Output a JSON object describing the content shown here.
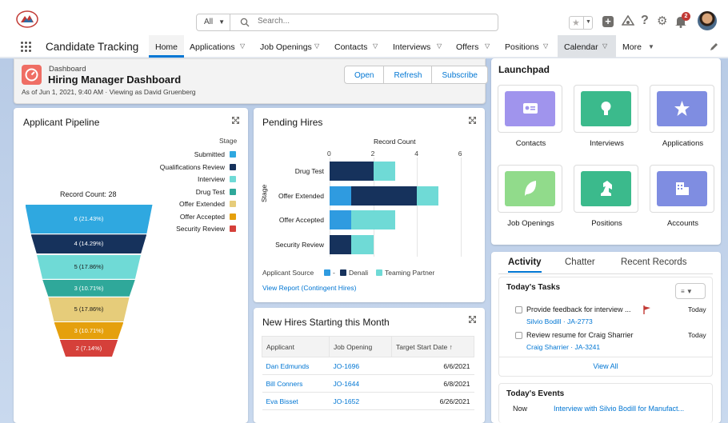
{
  "search": {
    "scope": "All",
    "placeholder": "Search..."
  },
  "notifications": {
    "count": "2"
  },
  "nav": {
    "app_name": "Candidate Tracking",
    "tabs": [
      "Home",
      "Applications",
      "Job Openings",
      "Contacts",
      "Interviews",
      "Offers",
      "Positions",
      "Calendar",
      "More"
    ]
  },
  "dashboard": {
    "type_label": "Dashboard",
    "title": "Hiring Manager Dashboard",
    "subtitle": "As of Jun 1, 2021, 9:40 AM · Viewing as David Gruenberg",
    "buttons": {
      "open": "Open",
      "refresh": "Refresh",
      "subscribe": "Subscribe"
    }
  },
  "pipeline": {
    "title": "Applicant Pipeline",
    "legend_title": "Stage",
    "record_count": "Record Count: 28",
    "stages": [
      {
        "name": "Submitted",
        "color": "#2fa8e0",
        "label": "6 (21.43%)",
        "value": 6
      },
      {
        "name": "Qualifications Review",
        "color": "#16325c",
        "label": "4 (14.29%)",
        "value": 4
      },
      {
        "name": "Interview",
        "color": "#6fdad6",
        "label": "5 (17.86%)",
        "value": 5
      },
      {
        "name": "Drug Test",
        "color": "#2fa89a",
        "label": "3 (10.71%)",
        "value": 3
      },
      {
        "name": "Offer Extended",
        "color": "#e6cc7a",
        "label": "5 (17.86%)",
        "value": 5
      },
      {
        "name": "Offer Accepted",
        "color": "#e5a00d",
        "label": "3 (10.71%)",
        "value": 3
      },
      {
        "name": "Security Review",
        "color": "#d5403a",
        "label": "2 (7.14%)",
        "value": 2
      }
    ]
  },
  "pending": {
    "title": "Pending Hires",
    "xlabel": "Record Count",
    "ylabel": "Stage",
    "ticks": [
      "0",
      "2",
      "4",
      "6"
    ],
    "source_label": "Applicant Source",
    "sources": [
      {
        "name": "-",
        "color": "#2f9be0"
      },
      {
        "name": "Denali",
        "color": "#16325c"
      },
      {
        "name": "Teaming Partner",
        "color": "#6fdad6"
      }
    ],
    "link": "View Report (Contingent Hires)"
  },
  "chart_data": {
    "type": "bar",
    "orientation": "horizontal",
    "stacked": true,
    "xlabel": "Record Count",
    "ylabel": "Stage",
    "xlim": [
      0,
      6
    ],
    "categories": [
      "Drug Test",
      "Offer Extended",
      "Offer Accepted",
      "Security Review"
    ],
    "series": [
      {
        "name": "-",
        "color": "#2f9be0",
        "values": [
          0,
          1,
          1,
          0
        ]
      },
      {
        "name": "Denali",
        "color": "#16325c",
        "values": [
          2,
          3,
          0,
          1
        ]
      },
      {
        "name": "Teaming Partner",
        "color": "#6fdad6",
        "values": [
          1,
          1,
          2,
          1
        ]
      }
    ]
  },
  "new_hires": {
    "title": "New Hires Starting this Month",
    "columns": [
      "Applicant",
      "Job Opening",
      "Target Start Date ↑"
    ],
    "rows": [
      {
        "applicant": "Dan Edmunds",
        "job": "JO-1696",
        "date": "6/6/2021"
      },
      {
        "applicant": "Bill Conners",
        "job": "JO-1644",
        "date": "6/8/2021"
      },
      {
        "applicant": "Eva Bisset",
        "job": "JO-1652",
        "date": "6/26/2021"
      }
    ]
  },
  "launchpad": {
    "title": "Launchpad",
    "tiles": [
      {
        "label": "Contacts",
        "color": "#a094ed",
        "icon": "contact-card-icon"
      },
      {
        "label": "Interviews",
        "color": "#3bba8c",
        "icon": "lightbulb-icon"
      },
      {
        "label": "Applications",
        "color": "#7f8de1",
        "icon": "star-icon"
      },
      {
        "label": "Job Openings",
        "color": "#91db8b",
        "icon": "leaf-icon"
      },
      {
        "label": "Positions",
        "color": "#3bba8c",
        "icon": "chess-knight-icon"
      },
      {
        "label": "Accounts",
        "color": "#7f8de1",
        "icon": "building-icon"
      }
    ]
  },
  "activity": {
    "tabs": [
      "Activity",
      "Chatter",
      "Recent Records"
    ],
    "tasks_title": "Today's Tasks",
    "tasks": [
      {
        "text": "Provide feedback for interview ...",
        "who": "Silvio Bodill",
        "ref": "JA-2773",
        "due": "Today"
      },
      {
        "text": "Review resume for Craig Sharrier",
        "who": "Craig Sharrier",
        "ref": "JA-3241",
        "due": "Today"
      }
    ],
    "view_all": "View All",
    "events_title": "Today's Events",
    "event": {
      "when": "Now",
      "text": "Interview with Silvio Bodill for Manufact..."
    }
  }
}
